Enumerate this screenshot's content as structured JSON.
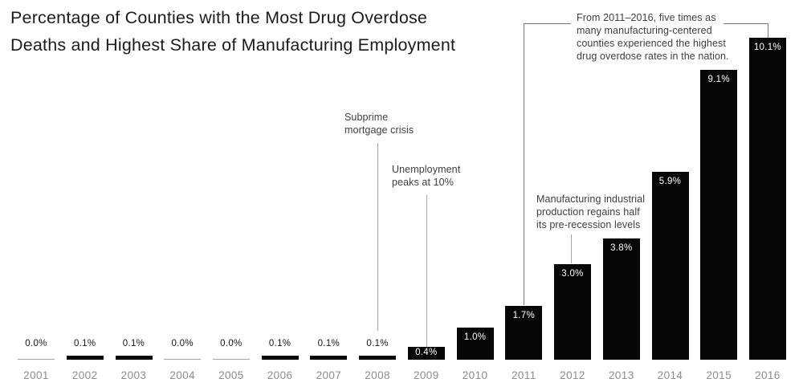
{
  "title": {
    "line1": "Percentage of Counties with the Most Drug Overdose",
    "line2": "Deaths and Highest Share of Manufacturing Employment"
  },
  "chart_data": {
    "type": "bar",
    "title": "Percentage of Counties with the Most Drug Overdose Deaths and Highest Share of Manufacturing Employment",
    "categories": [
      "2001",
      "2002",
      "2003",
      "2004",
      "2005",
      "2006",
      "2007",
      "2008",
      "2009",
      "2010",
      "2011",
      "2012",
      "2013",
      "2014",
      "2015",
      "2016"
    ],
    "values": [
      0.0,
      0.1,
      0.1,
      0.0,
      0.0,
      0.1,
      0.1,
      0.1,
      0.4,
      1.0,
      1.7,
      3.0,
      3.8,
      5.9,
      9.1,
      10.1
    ],
    "bar_labels": [
      "0.0%",
      "0.1%",
      "0.1%",
      "0.0%",
      "0.0%",
      "0.1%",
      "0.1%",
      "0.1%",
      "0.4%",
      "1.0%",
      "1.7%",
      "3.0%",
      "3.8%",
      "5.9%",
      "9.1%",
      "10.1%"
    ],
    "xlabel": "",
    "ylabel": "",
    "ylim": [
      0,
      10.5
    ],
    "grid": false,
    "legend": false,
    "bar_color": "#070707",
    "zero_bar_color": "#a8a8a8",
    "inside_label_color": "#ffffff",
    "outside_label_color": "#161616",
    "tick_label_color": "#8d8d8d",
    "annotations": {
      "subprime": {
        "target": "2008",
        "lines": [
          "Subprime",
          "mortgage crisis"
        ]
      },
      "unemployment": {
        "target": "2009",
        "lines": [
          "Unemployment",
          "peaks at 10%"
        ]
      },
      "manufacturing": {
        "target": "2012",
        "lines": [
          "Manufacturing industrial",
          "production regains half",
          "its pre-recession levels"
        ]
      },
      "bracket": {
        "target": "2011–2016",
        "lines": [
          "From 2011–2016, five times as",
          "many manufacturing-centered",
          "counties experienced the highest",
          "drug overdose rates in the nation."
        ]
      }
    }
  }
}
